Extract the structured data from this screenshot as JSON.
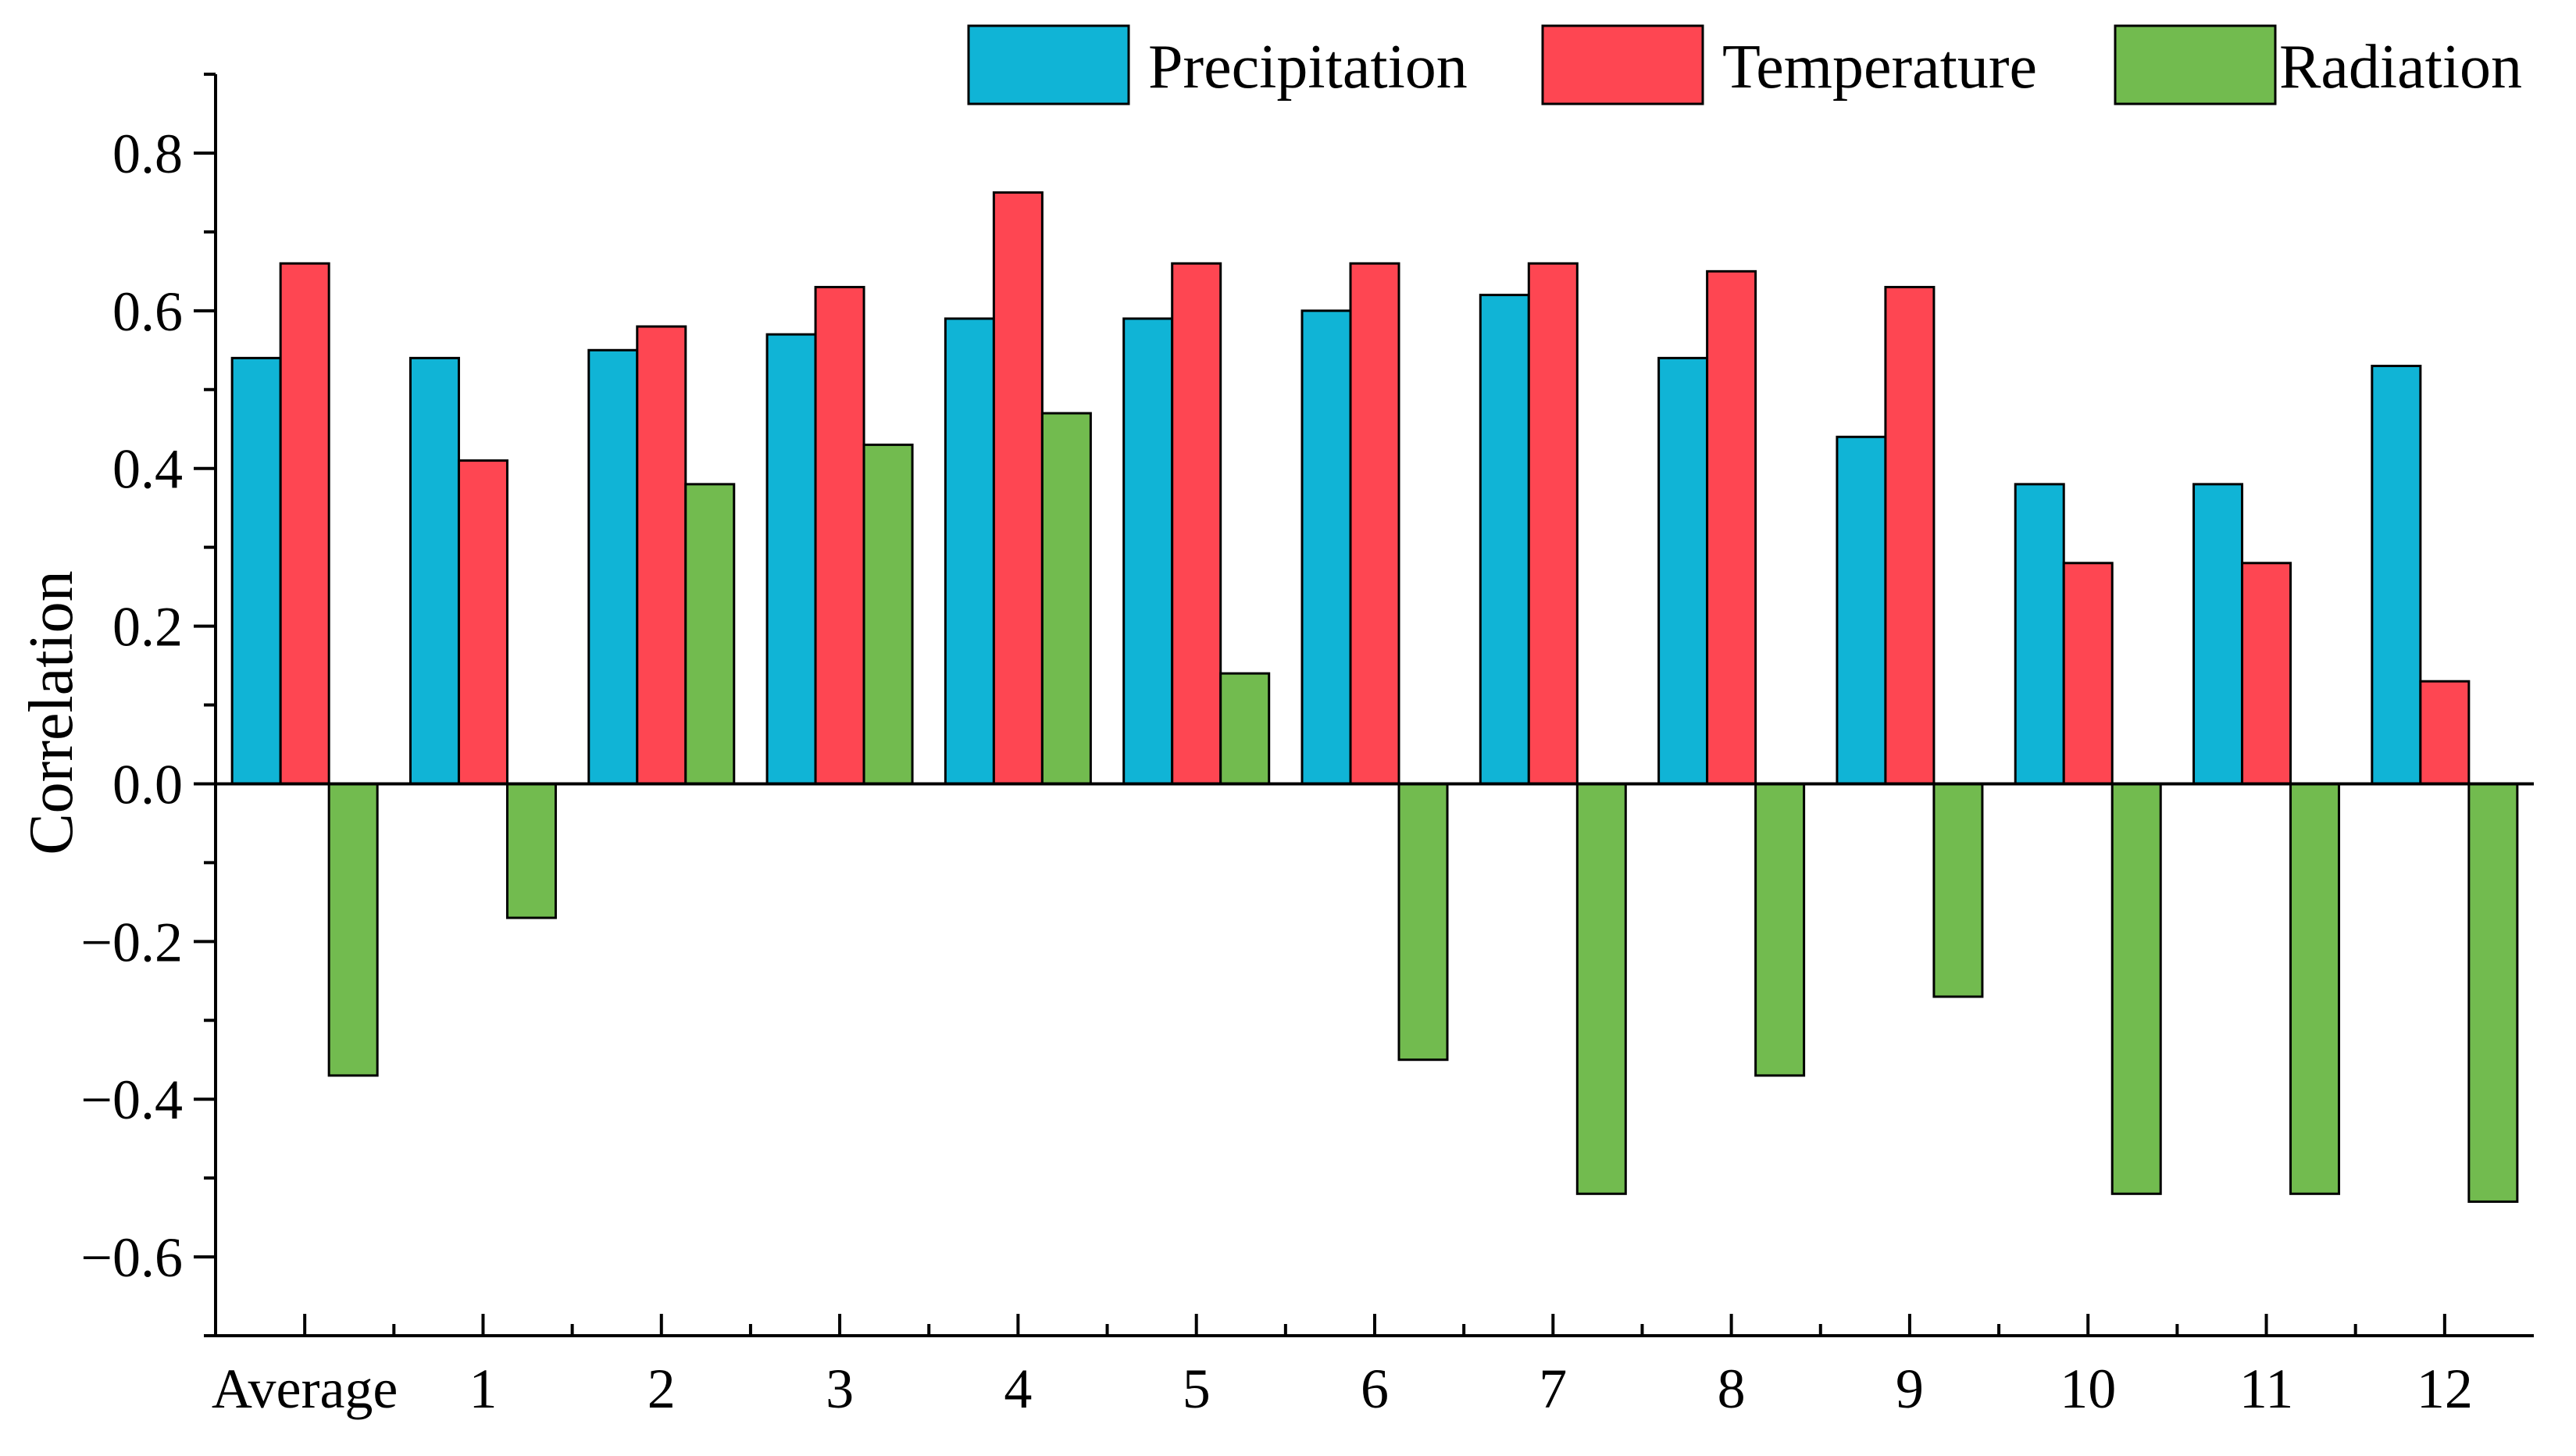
{
  "chart_data": {
    "type": "bar",
    "title": "",
    "xlabel": "",
    "ylabel": "Correlation",
    "ylim": [
      -0.7,
      0.9
    ],
    "yticks": [
      -0.6,
      -0.4,
      -0.2,
      0.0,
      0.2,
      0.4,
      0.6,
      0.8
    ],
    "ytick_labels": [
      "−0.6",
      "−0.4",
      "−0.2",
      "0.0",
      "0.2",
      "0.4",
      "0.6",
      "0.8"
    ],
    "legend_position": "top-right",
    "categories": [
      "Average",
      "1",
      "2",
      "3",
      "4",
      "5",
      "6",
      "7",
      "8",
      "9",
      "10",
      "11",
      "12"
    ],
    "series": [
      {
        "name": "Precipitation",
        "color": "#10b4d6",
        "values": [
          0.54,
          0.54,
          0.55,
          0.57,
          0.59,
          0.59,
          0.6,
          0.62,
          0.54,
          0.44,
          0.38,
          0.38,
          0.53
        ]
      },
      {
        "name": "Temperature",
        "color": "#fe4652",
        "values": [
          0.66,
          0.41,
          0.58,
          0.63,
          0.75,
          0.66,
          0.66,
          0.66,
          0.65,
          0.63,
          0.28,
          0.28,
          0.13
        ]
      },
      {
        "name": "Radiation",
        "color": "#72bb4f",
        "values": [
          -0.37,
          -0.17,
          0.38,
          0.43,
          0.47,
          0.14,
          -0.35,
          -0.52,
          -0.37,
          -0.27,
          -0.52,
          -0.52,
          -0.53
        ]
      }
    ]
  }
}
